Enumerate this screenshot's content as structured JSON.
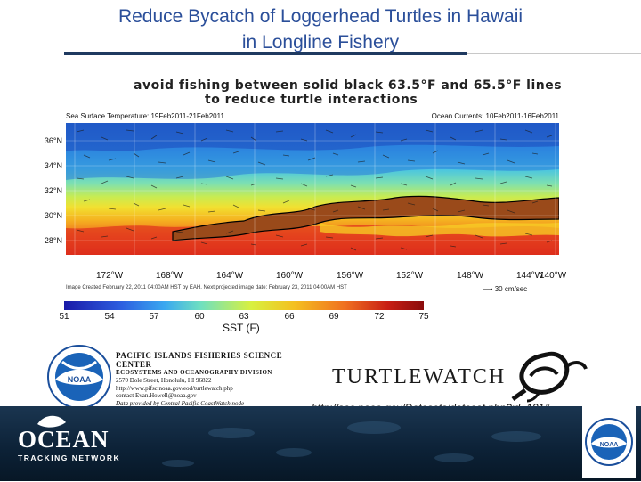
{
  "slide": {
    "title_line1": "Reduce Bycatch of Loggerhead Turtles in Hawaii",
    "title_line2": "in Longline Fishery"
  },
  "map": {
    "caption_line1": "avoid fishing between solid black 63.5°F and 65.5°F lines",
    "caption_line2": "to reduce turtle interactions",
    "header_left": "Sea Surface Temperature: 19Feb2011-21Feb2011",
    "header_right": "Ocean Currents: 10Feb2011-16Feb2011",
    "lat_labels": [
      "36°N",
      "34°N",
      "32°N",
      "30°N",
      "28°N"
    ],
    "lon_labels": [
      "172°W",
      "168°W",
      "164°W",
      "160°W",
      "156°W",
      "152°W",
      "148°W",
      "144°W",
      "140°W"
    ],
    "credit": "Image Created February 22, 2011 04:00AM HST by EAH. Next projected image date: February 23, 2011 04:00AM HST",
    "current_scale": "30 cm/sec",
    "colorbar_ticks": [
      "51",
      "54",
      "57",
      "60",
      "63",
      "66",
      "69",
      "72",
      "75"
    ],
    "colorbar_label": "SST (F)"
  },
  "pifsc": {
    "line1": "PACIFIC ISLANDS FISHERIES SCIENCE CENTER",
    "line2": "ECOSYSTEMS AND OCEANOGRAPHY DIVISION",
    "line3": "2570 Dole Street, Honolulu, HI 96822",
    "line4": "http://www.pifsc.noaa.gov/eod/turtlewatch.php",
    "line5": "contact Evan.Howell@noaa.gov",
    "line6": "Data provided by Central Pacific CoastWatch node",
    "noaa_text": "NOAA"
  },
  "turtlewatch": {
    "logo_text": "TURTLEWATCH",
    "url": "http://sos.noaa.gov/Datasets/dataset.php?id=181#"
  },
  "footer": {
    "ocean": "OCEAN",
    "subtitle": "TRACKING NETWORK",
    "noaa_text": "NOAA"
  },
  "colors": {
    "title": "#2b4f9a",
    "warm": "#d9261c",
    "cold": "#1a1aa8",
    "band": "#9a4a1a",
    "footer_bg": "#0c2136"
  }
}
